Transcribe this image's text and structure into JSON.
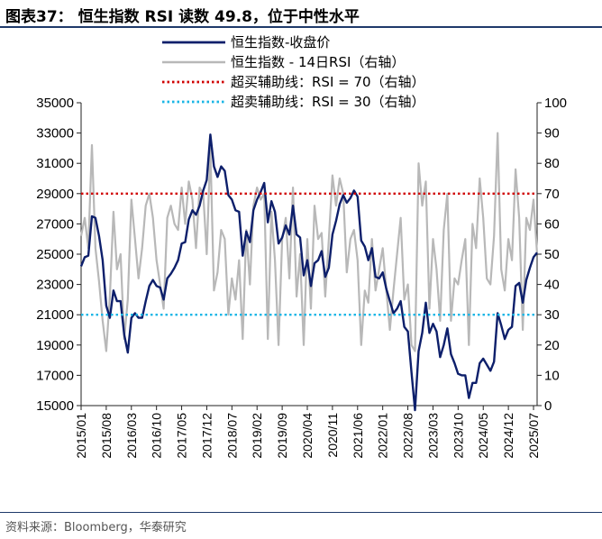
{
  "figure": {
    "title": "图表37： 恒生指数 RSI 读数 49.8，位于中性水平",
    "source": "资料来源：Bloomberg，华泰研究"
  },
  "colors": {
    "hsi_line": "#0d1f6b",
    "rsi_line": "#b8b8b8",
    "overbought_line": "#d00000",
    "oversold_line": "#1ab6e6",
    "rule": "#1f3a6a"
  },
  "chart_data": {
    "type": "line",
    "x_axis": {
      "ticks": [
        "2015/01",
        "2015/08",
        "2016/03",
        "2016/10",
        "2017/05",
        "2017/12",
        "2018/07",
        "2019/02",
        "2019/09",
        "2020/04",
        "2020/11",
        "2021/06",
        "2022/01",
        "2022/08",
        "2023/03",
        "2023/10",
        "2024/05",
        "2024/12",
        "2025/07"
      ],
      "start": "2015/01",
      "end": "2025/08"
    },
    "y_left": {
      "min": 15000,
      "max": 35000,
      "ticks": [
        15000,
        17000,
        19000,
        21000,
        23000,
        25000,
        27000,
        29000,
        31000,
        33000,
        35000
      ]
    },
    "y_right": {
      "min": 0,
      "max": 100,
      "ticks": [
        0,
        10,
        20,
        30,
        40,
        50,
        60,
        70,
        80,
        90,
        100
      ]
    },
    "grid": false,
    "legend_position": "top",
    "series": [
      {
        "name": "恒生指数-收盘价",
        "axis": "left",
        "style": "solid",
        "points": [
          [
            "2015/01",
            24200
          ],
          [
            "2015/02",
            24800
          ],
          [
            "2015/03",
            24900
          ],
          [
            "2015/04",
            27500
          ],
          [
            "2015/05",
            27400
          ],
          [
            "2015/06",
            26200
          ],
          [
            "2015/07",
            24600
          ],
          [
            "2015/08",
            21600
          ],
          [
            "2015/09",
            20800
          ],
          [
            "2015/10",
            22600
          ],
          [
            "2015/11",
            21900
          ],
          [
            "2015/12",
            21900
          ],
          [
            "2016/01",
            19700
          ],
          [
            "2016/02",
            18500
          ],
          [
            "2016/03",
            20800
          ],
          [
            "2016/04",
            21100
          ],
          [
            "2016/05",
            20800
          ],
          [
            "2016/06",
            20800
          ],
          [
            "2016/07",
            21900
          ],
          [
            "2016/08",
            22900
          ],
          [
            "2016/09",
            23300
          ],
          [
            "2016/10",
            22900
          ],
          [
            "2016/11",
            22800
          ],
          [
            "2016/12",
            22000
          ],
          [
            "2017/01",
            23400
          ],
          [
            "2017/02",
            23700
          ],
          [
            "2017/03",
            24100
          ],
          [
            "2017/04",
            24600
          ],
          [
            "2017/05",
            25700
          ],
          [
            "2017/06",
            25800
          ],
          [
            "2017/07",
            27300
          ],
          [
            "2017/08",
            27900
          ],
          [
            "2017/09",
            27600
          ],
          [
            "2017/10",
            28200
          ],
          [
            "2017/11",
            29200
          ],
          [
            "2017/12",
            29900
          ],
          [
            "2018/01",
            32900
          ],
          [
            "2018/02",
            30800
          ],
          [
            "2018/03",
            30100
          ],
          [
            "2018/04",
            30800
          ],
          [
            "2018/05",
            30500
          ],
          [
            "2018/06",
            28900
          ],
          [
            "2018/07",
            28600
          ],
          [
            "2018/08",
            27900
          ],
          [
            "2018/09",
            27800
          ],
          [
            "2018/10",
            24900
          ],
          [
            "2018/11",
            26500
          ],
          [
            "2018/12",
            25800
          ],
          [
            "2019/01",
            27900
          ],
          [
            "2019/02",
            28600
          ],
          [
            "2019/03",
            29100
          ],
          [
            "2019/04",
            29700
          ],
          [
            "2019/05",
            27100
          ],
          [
            "2019/06",
            28500
          ],
          [
            "2019/07",
            27800
          ],
          [
            "2019/08",
            25700
          ],
          [
            "2019/09",
            26100
          ],
          [
            "2019/10",
            26900
          ],
          [
            "2019/11",
            26300
          ],
          [
            "2019/12",
            28200
          ],
          [
            "2020/01",
            26300
          ],
          [
            "2020/02",
            26100
          ],
          [
            "2020/03",
            23600
          ],
          [
            "2020/04",
            24600
          ],
          [
            "2020/05",
            22900
          ],
          [
            "2020/06",
            24400
          ],
          [
            "2020/07",
            24600
          ],
          [
            "2020/08",
            25200
          ],
          [
            "2020/09",
            23500
          ],
          [
            "2020/10",
            24100
          ],
          [
            "2020/11",
            26300
          ],
          [
            "2020/12",
            27200
          ],
          [
            "2021/01",
            28300
          ],
          [
            "2021/02",
            28900
          ],
          [
            "2021/03",
            28400
          ],
          [
            "2021/04",
            28700
          ],
          [
            "2021/05",
            29200
          ],
          [
            "2021/06",
            28800
          ],
          [
            "2021/07",
            25900
          ],
          [
            "2021/08",
            25500
          ],
          [
            "2021/09",
            24600
          ],
          [
            "2021/10",
            25400
          ],
          [
            "2021/11",
            23500
          ],
          [
            "2021/12",
            23400
          ],
          [
            "2022/01",
            23800
          ],
          [
            "2022/02",
            22700
          ],
          [
            "2022/03",
            21900
          ],
          [
            "2022/04",
            21100
          ],
          [
            "2022/05",
            21400
          ],
          [
            "2022/06",
            21900
          ],
          [
            "2022/07",
            20200
          ],
          [
            "2022/08",
            19900
          ],
          [
            "2022/09",
            17200
          ],
          [
            "2022/10",
            14700
          ],
          [
            "2022/11",
            18600
          ],
          [
            "2022/12",
            19800
          ],
          [
            "2023/01",
            21800
          ],
          [
            "2023/02",
            19800
          ],
          [
            "2023/03",
            20400
          ],
          [
            "2023/04",
            19900
          ],
          [
            "2023/05",
            18200
          ],
          [
            "2023/06",
            19000
          ],
          [
            "2023/07",
            20100
          ],
          [
            "2023/08",
            18400
          ],
          [
            "2023/09",
            17800
          ],
          [
            "2023/10",
            17100
          ],
          [
            "2023/11",
            17000
          ],
          [
            "2023/12",
            17000
          ],
          [
            "2024/01",
            15500
          ],
          [
            "2024/02",
            16500
          ],
          [
            "2024/03",
            16500
          ],
          [
            "2024/04",
            17800
          ],
          [
            "2024/05",
            18100
          ],
          [
            "2024/06",
            17700
          ],
          [
            "2024/07",
            17300
          ],
          [
            "2024/08",
            17900
          ],
          [
            "2024/09",
            21100
          ],
          [
            "2024/10",
            20300
          ],
          [
            "2024/11",
            19400
          ],
          [
            "2024/12",
            20000
          ],
          [
            "2025/01",
            20200
          ],
          [
            "2025/02",
            22900
          ],
          [
            "2025/03",
            23100
          ],
          [
            "2025/04",
            21800
          ],
          [
            "2025/05",
            23300
          ],
          [
            "2025/06",
            24100
          ],
          [
            "2025/07",
            24800
          ],
          [
            "2025/08",
            25100
          ]
        ]
      },
      {
        "name": "恒生指数 - 14日RSI（右轴）",
        "axis": "right",
        "style": "solid",
        "points": [
          [
            "2015/01",
            56
          ],
          [
            "2015/02",
            62
          ],
          [
            "2015/03",
            52
          ],
          [
            "2015/04",
            86
          ],
          [
            "2015/05",
            52
          ],
          [
            "2015/06",
            41
          ],
          [
            "2015/07",
            28
          ],
          [
            "2015/08",
            18
          ],
          [
            "2015/09",
            36
          ],
          [
            "2015/10",
            64
          ],
          [
            "2015/11",
            45
          ],
          [
            "2015/12",
            50
          ],
          [
            "2016/01",
            22
          ],
          [
            "2016/02",
            35
          ],
          [
            "2016/03",
            68
          ],
          [
            "2016/04",
            55
          ],
          [
            "2016/05",
            42
          ],
          [
            "2016/06",
            52
          ],
          [
            "2016/07",
            66
          ],
          [
            "2016/08",
            70
          ],
          [
            "2016/09",
            62
          ],
          [
            "2016/10",
            48
          ],
          [
            "2016/11",
            40
          ],
          [
            "2016/12",
            32
          ],
          [
            "2017/01",
            62
          ],
          [
            "2017/02",
            66
          ],
          [
            "2017/03",
            60
          ],
          [
            "2017/04",
            58
          ],
          [
            "2017/05",
            72
          ],
          [
            "2017/06",
            60
          ],
          [
            "2017/07",
            74
          ],
          [
            "2017/08",
            68
          ],
          [
            "2017/09",
            52
          ],
          [
            "2017/10",
            72
          ],
          [
            "2017/11",
            70
          ],
          [
            "2017/12",
            50
          ],
          [
            "2018/01",
            85
          ],
          [
            "2018/02",
            38
          ],
          [
            "2018/03",
            44
          ],
          [
            "2018/04",
            58
          ],
          [
            "2018/05",
            55
          ],
          [
            "2018/06",
            30
          ],
          [
            "2018/07",
            42
          ],
          [
            "2018/08",
            35
          ],
          [
            "2018/09",
            48
          ],
          [
            "2018/10",
            22
          ],
          [
            "2018/11",
            58
          ],
          [
            "2018/12",
            40
          ],
          [
            "2019/01",
            66
          ],
          [
            "2019/02",
            72
          ],
          [
            "2019/03",
            68
          ],
          [
            "2019/04",
            70
          ],
          [
            "2019/05",
            22
          ],
          [
            "2019/06",
            64
          ],
          [
            "2019/07",
            48
          ],
          [
            "2019/08",
            20
          ],
          [
            "2019/09",
            55
          ],
          [
            "2019/10",
            62
          ],
          [
            "2019/11",
            42
          ],
          [
            "2019/12",
            72
          ],
          [
            "2020/01",
            36
          ],
          [
            "2020/02",
            50
          ],
          [
            "2020/03",
            20
          ],
          [
            "2020/04",
            55
          ],
          [
            "2020/05",
            32
          ],
          [
            "2020/06",
            66
          ],
          [
            "2020/07",
            55
          ],
          [
            "2020/08",
            57
          ],
          [
            "2020/09",
            36
          ],
          [
            "2020/10",
            55
          ],
          [
            "2020/11",
            76
          ],
          [
            "2020/12",
            66
          ],
          [
            "2021/01",
            75
          ],
          [
            "2021/02",
            70
          ],
          [
            "2021/03",
            44
          ],
          [
            "2021/04",
            55
          ],
          [
            "2021/05",
            58
          ],
          [
            "2021/06",
            48
          ],
          [
            "2021/07",
            20
          ],
          [
            "2021/08",
            38
          ],
          [
            "2021/09",
            34
          ],
          [
            "2021/10",
            55
          ],
          [
            "2021/11",
            38
          ],
          [
            "2021/12",
            45
          ],
          [
            "2022/01",
            52
          ],
          [
            "2022/02",
            38
          ],
          [
            "2022/03",
            25
          ],
          [
            "2022/04",
            38
          ],
          [
            "2022/05",
            50
          ],
          [
            "2022/06",
            62
          ],
          [
            "2022/07",
            35
          ],
          [
            "2022/08",
            40
          ],
          [
            "2022/09",
            20
          ],
          [
            "2022/10",
            18
          ],
          [
            "2022/11",
            80
          ],
          [
            "2022/12",
            66
          ],
          [
            "2023/01",
            74
          ],
          [
            "2023/02",
            32
          ],
          [
            "2023/03",
            55
          ],
          [
            "2023/04",
            45
          ],
          [
            "2023/05",
            28
          ],
          [
            "2023/06",
            58
          ],
          [
            "2023/07",
            70
          ],
          [
            "2023/08",
            28
          ],
          [
            "2023/09",
            42
          ],
          [
            "2023/10",
            40
          ],
          [
            "2023/11",
            48
          ],
          [
            "2023/12",
            55
          ],
          [
            "2024/01",
            20
          ],
          [
            "2024/02",
            60
          ],
          [
            "2024/03",
            52
          ],
          [
            "2024/04",
            75
          ],
          [
            "2024/05",
            62
          ],
          [
            "2024/06",
            42
          ],
          [
            "2024/07",
            40
          ],
          [
            "2024/08",
            56
          ],
          [
            "2024/09",
            90
          ],
          [
            "2024/10",
            45
          ],
          [
            "2024/11",
            38
          ],
          [
            "2024/12",
            55
          ],
          [
            "2025/01",
            48
          ],
          [
            "2025/02",
            78
          ],
          [
            "2025/03",
            62
          ],
          [
            "2025/04",
            25
          ],
          [
            "2025/05",
            62
          ],
          [
            "2025/06",
            58
          ],
          [
            "2025/07",
            68
          ],
          [
            "2025/08",
            50
          ]
        ]
      },
      {
        "name": "超买辅助线：RSI = 70（右轴）",
        "axis": "right",
        "style": "dotted",
        "constant": 70
      },
      {
        "name": "超卖辅助线：RSI = 30（右轴）",
        "axis": "right",
        "style": "dotted",
        "constant": 30
      }
    ]
  }
}
